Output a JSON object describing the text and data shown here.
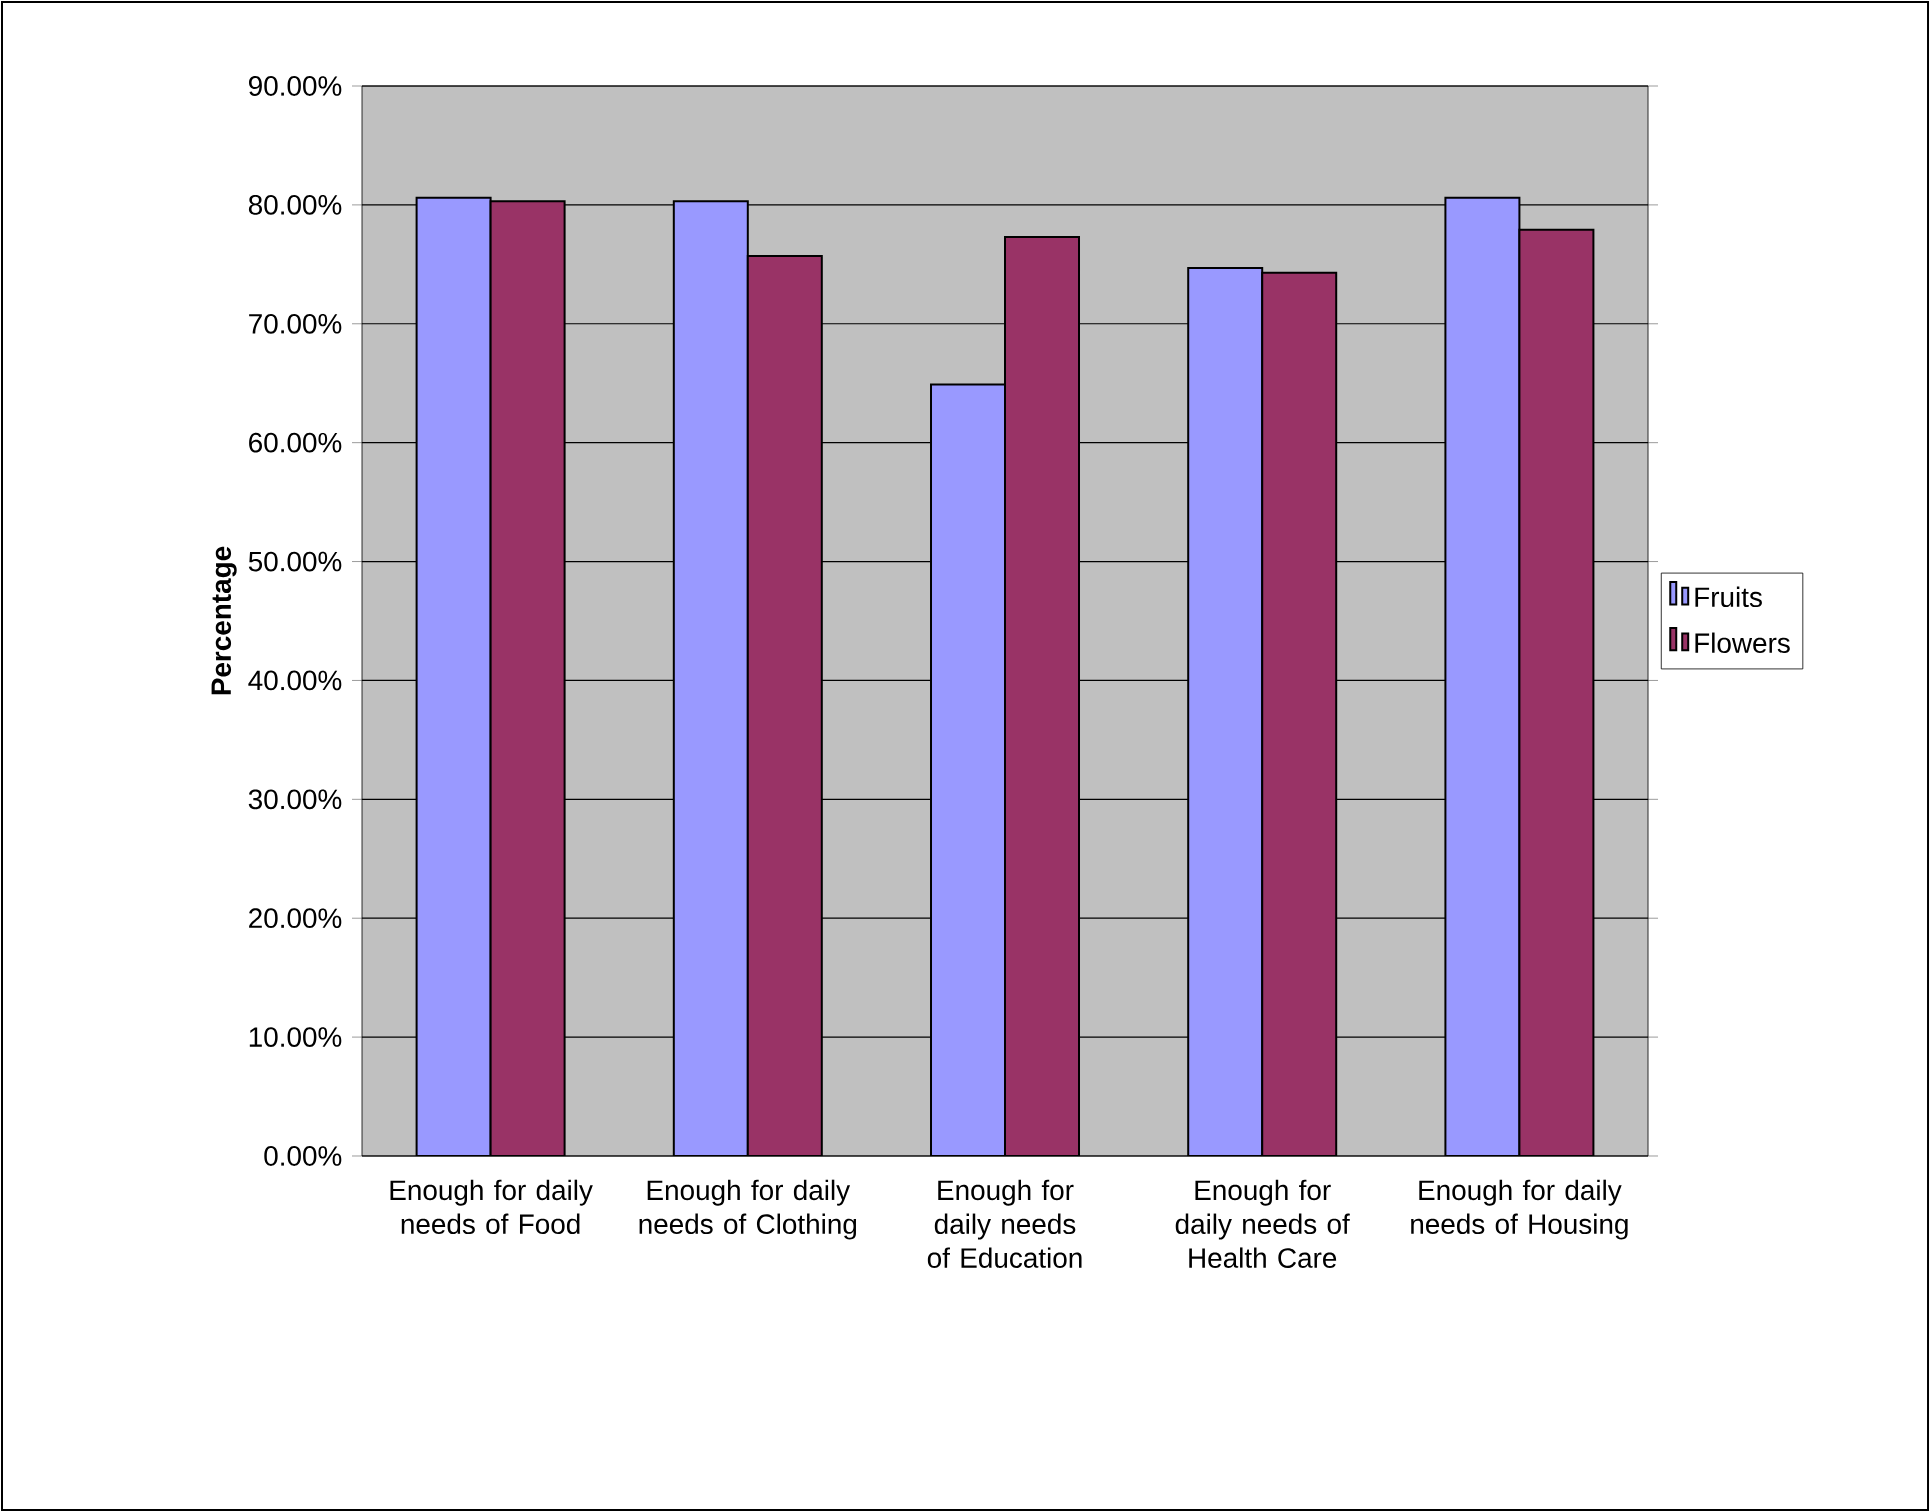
{
  "chart_data": {
    "type": "bar",
    "ylabel": "Percentage",
    "categories": [
      "Enough for daily needs of Food",
      "Enough for daily needs of Clothing",
      "Enough for daily needs of Education",
      "Enough for daily needs of Health Care",
      "Enough for daily needs of Housing"
    ],
    "series": [
      {
        "name": "Fruits",
        "color": "#9999ff",
        "values": [
          80.6,
          80.3,
          64.9,
          74.7,
          80.6
        ]
      },
      {
        "name": "Flowers",
        "color": "#993366",
        "values": [
          80.3,
          75.7,
          77.3,
          74.3,
          77.9
        ]
      }
    ],
    "ylim": [
      0,
      90
    ],
    "yticks": [
      {
        "value": 0,
        "label": "0.00%"
      },
      {
        "value": 10,
        "label": "10.00%"
      },
      {
        "value": 20,
        "label": "20.00%"
      },
      {
        "value": 30,
        "label": "30.00%"
      },
      {
        "value": 40,
        "label": "40.00%"
      },
      {
        "value": 50,
        "label": "50.00%"
      },
      {
        "value": 60,
        "label": "60.00%"
      },
      {
        "value": 70,
        "label": "70.00%"
      },
      {
        "value": 80,
        "label": "80.00%"
      },
      {
        "value": 90,
        "label": "90.00%"
      }
    ],
    "grid": "y",
    "legend": "right"
  }
}
